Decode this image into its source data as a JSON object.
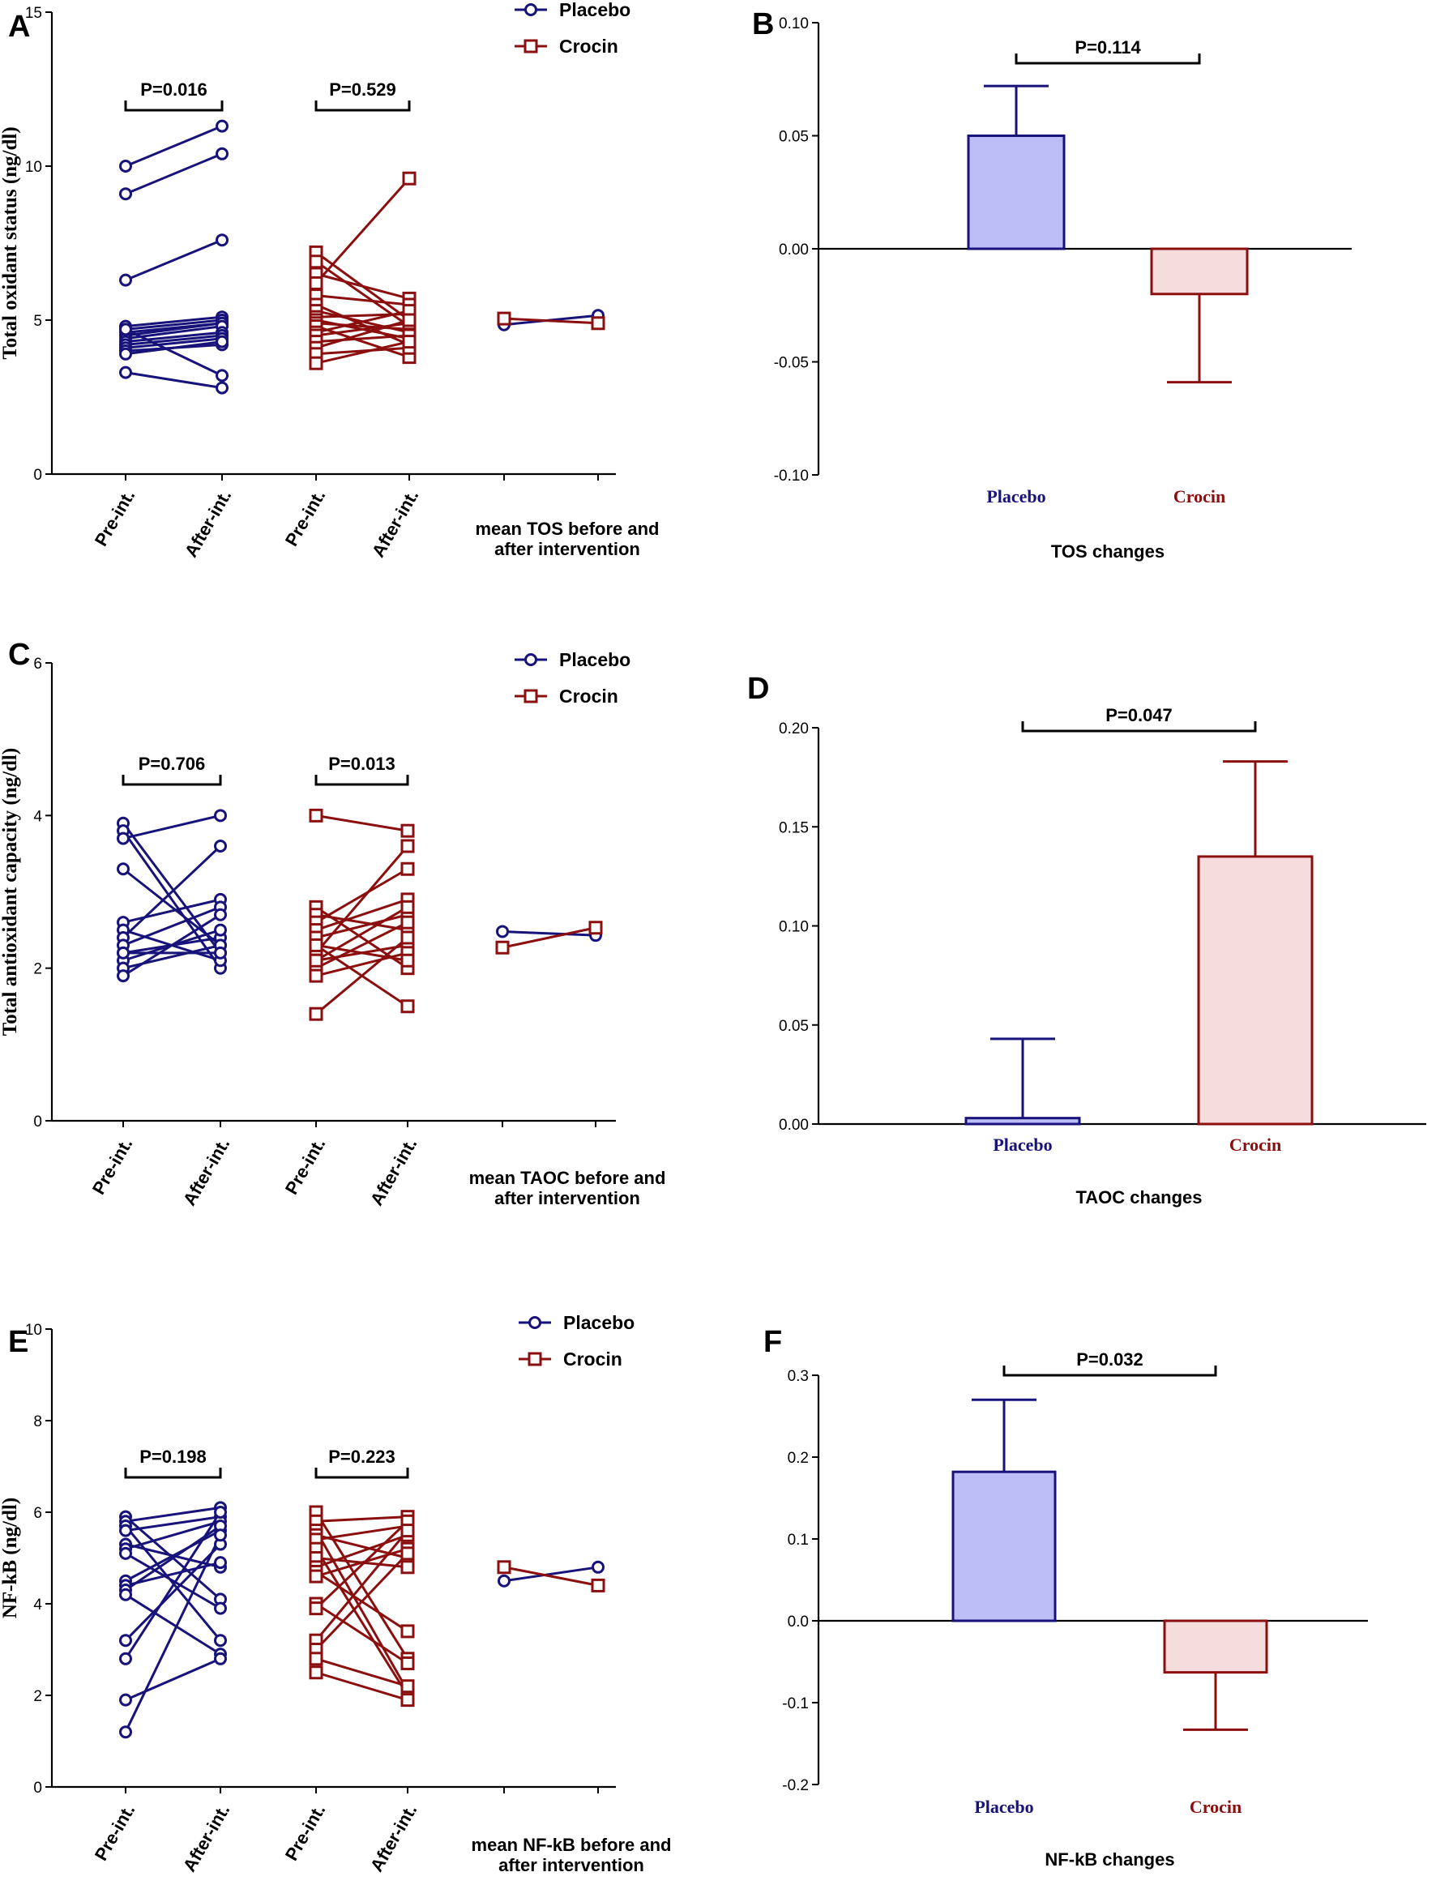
{
  "colors": {
    "placebo": "#17137a",
    "crocin": "#8b0f0f",
    "placebo_fill": "#bcbcf7",
    "crocin_fill": "#f6dddd"
  },
  "legend": {
    "placebo": "Placebo",
    "crocin": "Crocin"
  },
  "chart_data": [
    {
      "panel": "A",
      "type": "line",
      "ylabel": "Total oxidant status (ng/dl)",
      "ylim": [
        0,
        15
      ],
      "yticks": [
        "0",
        "5",
        "10",
        "15"
      ],
      "categories": [
        "Pre-int.",
        "After-int.",
        "Pre-int.",
        "After-int."
      ],
      "mean_label": [
        "mean TOS before and",
        "after intervention"
      ],
      "p_values": [
        "P=0.016",
        "P=0.529"
      ],
      "series": [
        {
          "name": "Placebo",
          "pairs": [
            [
              10.0,
              11.3
            ],
            [
              9.1,
              10.4
            ],
            [
              6.3,
              7.6
            ],
            [
              4.8,
              5.1
            ],
            [
              4.7,
              5.0
            ],
            [
              4.6,
              4.9
            ],
            [
              4.5,
              4.9
            ],
            [
              4.4,
              4.8
            ],
            [
              4.3,
              4.6
            ],
            [
              4.2,
              4.5
            ],
            [
              4.1,
              4.4
            ],
            [
              4.0,
              4.2
            ],
            [
              3.9,
              4.3
            ],
            [
              3.3,
              2.8
            ],
            [
              4.7,
              3.2
            ]
          ]
        },
        {
          "name": "Crocin",
          "pairs": [
            [
              7.2,
              5.0
            ],
            [
              6.9,
              4.8
            ],
            [
              6.5,
              5.7
            ],
            [
              6.2,
              9.6
            ],
            [
              5.8,
              5.5
            ],
            [
              5.5,
              4.2
            ],
            [
              5.3,
              4.6
            ],
            [
              5.1,
              5.2
            ],
            [
              5.0,
              4.4
            ],
            [
              4.9,
              4.7
            ],
            [
              4.8,
              3.8
            ],
            [
              4.6,
              5.3
            ],
            [
              4.5,
              4.9
            ],
            [
              4.3,
              4.5
            ],
            [
              4.1,
              5.0
            ],
            [
              3.9,
              4.1
            ],
            [
              3.6,
              4.3
            ]
          ]
        }
      ],
      "means": {
        "Placebo": [
          4.85,
          5.15
        ],
        "Crocin": [
          5.05,
          4.9
        ]
      }
    },
    {
      "panel": "B",
      "type": "bar",
      "xlabel": "TOS changes",
      "categories": [
        "Placebo",
        "Crocin"
      ],
      "values": [
        0.05,
        -0.02
      ],
      "errors": [
        0.022,
        0.039
      ],
      "ylim": [
        -0.1,
        0.1
      ],
      "yticks": [
        "-0.10",
        "-0.05",
        "0.00",
        "0.05",
        "0.10"
      ],
      "p_value": "P=0.114"
    },
    {
      "panel": "C",
      "type": "line",
      "ylabel": "Total antioxidant capacity (ng/dl)",
      "ylim": [
        0,
        6
      ],
      "yticks": [
        "0",
        "2",
        "4",
        "6"
      ],
      "categories": [
        "Pre-int.",
        "After-int.",
        "Pre-int.",
        "After-int."
      ],
      "mean_label": [
        "mean TAOC before and",
        "after intervention"
      ],
      "p_values": [
        "P=0.706",
        "P=0.013"
      ],
      "series": [
        {
          "name": "Placebo",
          "pairs": [
            [
              3.9,
              2.2
            ],
            [
              3.8,
              2.0
            ],
            [
              3.7,
              4.0
            ],
            [
              3.3,
              2.3
            ],
            [
              2.6,
              2.9
            ],
            [
              2.5,
              2.1
            ],
            [
              2.4,
              3.6
            ],
            [
              2.3,
              2.8
            ],
            [
              2.2,
              2.4
            ],
            [
              2.1,
              2.5
            ],
            [
              2.0,
              2.3
            ],
            [
              1.9,
              2.7
            ],
            [
              2.2,
              2.2
            ]
          ]
        },
        {
          "name": "Crocin",
          "pairs": [
            [
              4.0,
              3.8
            ],
            [
              2.8,
              2.0
            ],
            [
              2.7,
              2.5
            ],
            [
              2.6,
              3.3
            ],
            [
              2.5,
              2.9
            ],
            [
              2.4,
              2.7
            ],
            [
              2.3,
              1.5
            ],
            [
              2.2,
              3.6
            ],
            [
              2.1,
              2.3
            ],
            [
              2.0,
              2.6
            ],
            [
              1.9,
              2.2
            ],
            [
              1.4,
              2.4
            ],
            [
              2.3,
              2.1
            ],
            [
              2.1,
              2.8
            ]
          ]
        }
      ],
      "means": {
        "Placebo": [
          2.48,
          2.43
        ],
        "Crocin": [
          2.27,
          2.53
        ]
      }
    },
    {
      "panel": "D",
      "type": "bar",
      "xlabel": "TAOC changes",
      "categories": [
        "Placebo",
        "Crocin"
      ],
      "values": [
        0.003,
        0.135
      ],
      "errors": [
        0.04,
        0.048
      ],
      "ylim": [
        0,
        0.2
      ],
      "yticks": [
        "0.00",
        "0.05",
        "0.10",
        "0.15",
        "0.20"
      ],
      "p_value": "P=0.047"
    },
    {
      "panel": "E",
      "type": "line",
      "ylabel": "NF-kB (ng/dl)",
      "ylim": [
        0,
        10
      ],
      "yticks": [
        "0",
        "2",
        "4",
        "6",
        "8",
        "10"
      ],
      "categories": [
        "Pre-int.",
        "After-int.",
        "Pre-int.",
        "After-int."
      ],
      "mean_label": [
        "mean NF-kB before and",
        "after intervention"
      ],
      "p_values": [
        "P=0.198",
        "P=0.223"
      ],
      "series": [
        {
          "name": "Placebo",
          "pairs": [
            [
              5.9,
              4.1
            ],
            [
              5.8,
              6.1
            ],
            [
              5.7,
              3.2
            ],
            [
              5.6,
              5.9
            ],
            [
              5.3,
              4.8
            ],
            [
              5.2,
              5.8
            ],
            [
              5.1,
              3.9
            ],
            [
              4.5,
              5.6
            ],
            [
              4.4,
              4.9
            ],
            [
              4.3,
              5.7
            ],
            [
              4.2,
              2.9
            ],
            [
              3.2,
              5.3
            ],
            [
              2.8,
              6.0
            ],
            [
              1.9,
              2.8
            ],
            [
              1.2,
              5.5
            ]
          ]
        },
        {
          "name": "Crocin",
          "pairs": [
            [
              6.0,
              2.8
            ],
            [
              5.8,
              5.9
            ],
            [
              5.6,
              2.1
            ],
            [
              5.5,
              5.0
            ],
            [
              5.4,
              5.7
            ],
            [
              5.2,
              2.0
            ],
            [
              5.0,
              4.8
            ],
            [
              4.8,
              5.5
            ],
            [
              4.7,
              3.4
            ],
            [
              4.6,
              5.2
            ],
            [
              4.0,
              2.7
            ],
            [
              3.9,
              5.8
            ],
            [
              3.2,
              5.6
            ],
            [
              3.0,
              5.1
            ],
            [
              2.8,
              2.2
            ],
            [
              2.5,
              1.9
            ]
          ]
        }
      ],
      "means": {
        "Placebo": [
          4.5,
          4.8
        ],
        "Crocin": [
          4.8,
          4.4
        ]
      }
    },
    {
      "panel": "F",
      "type": "bar",
      "xlabel": "NF-kB changes",
      "categories": [
        "Placebo",
        "Crocin"
      ],
      "values": [
        0.182,
        -0.063
      ],
      "errors": [
        0.088,
        0.07
      ],
      "ylim": [
        -0.2,
        0.3
      ],
      "yticks": [
        "-0.2",
        "-0.1",
        "0.0",
        "0.1",
        "0.2",
        "0.3"
      ],
      "p_value": "P=0.032"
    }
  ]
}
